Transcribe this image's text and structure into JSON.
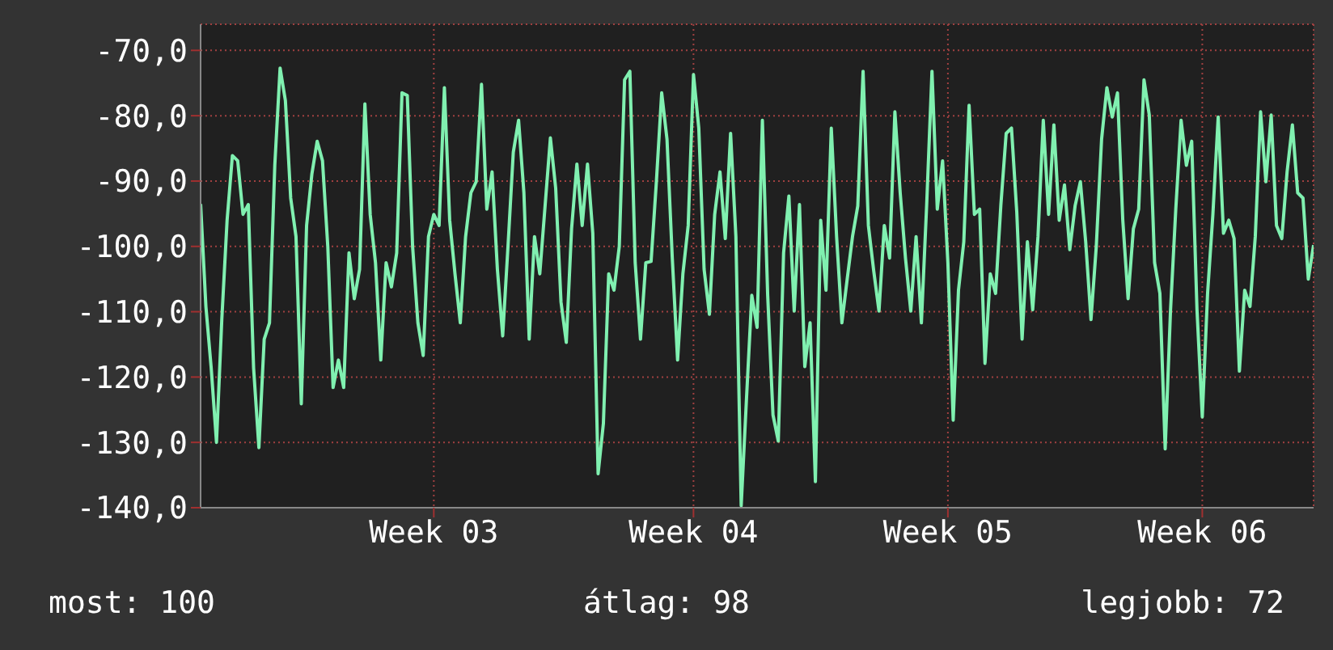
{
  "chart_data": {
    "type": "line",
    "ylim": [
      -140,
      -66
    ],
    "categories": [
      null,
      null,
      null,
      null,
      null,
      null,
      null,
      null,
      null,
      null,
      null,
      null,
      null,
      null,
      null,
      null,
      null,
      null,
      null,
      null,
      null,
      null,
      null,
      null,
      null,
      null,
      null,
      null,
      null,
      null,
      null,
      null,
      null,
      null,
      null,
      null,
      null,
      null,
      null,
      null,
      null,
      null,
      null,
      null,
      "Week 03",
      null,
      null,
      null,
      null,
      null,
      null,
      null,
      null,
      null,
      null,
      null,
      null,
      null,
      null,
      null,
      null,
      null,
      null,
      null,
      null,
      null,
      null,
      null,
      null,
      null,
      null,
      null,
      null,
      null,
      null,
      null,
      null,
      null,
      null,
      null,
      null,
      null,
      null,
      null,
      null,
      null,
      null,
      null,
      null,
      null,
      null,
      null,
      null,
      "Week 04",
      null,
      null,
      null,
      null,
      null,
      null,
      null,
      null,
      null,
      null,
      null,
      null,
      null,
      null,
      null,
      null,
      null,
      null,
      null,
      null,
      null,
      null,
      null,
      null,
      null,
      null,
      null,
      null,
      null,
      null,
      null,
      null,
      null,
      null,
      null,
      null,
      null,
      null,
      null,
      null,
      null,
      null,
      null,
      null,
      null,
      null,
      null,
      "Week 05",
      null,
      null,
      null,
      null,
      null,
      null,
      null,
      null,
      null,
      null,
      null,
      null,
      null,
      null,
      null,
      null,
      null,
      null,
      null,
      null,
      null,
      null,
      null,
      null,
      null,
      null,
      null,
      null,
      null,
      null,
      null,
      null,
      null,
      null,
      null,
      null,
      null,
      null,
      null,
      null,
      null,
      null,
      null,
      null,
      null,
      null,
      null,
      "Week 06",
      null,
      null,
      null,
      null,
      null,
      null,
      null,
      null,
      null,
      null,
      null,
      null,
      null,
      null,
      null,
      null,
      null,
      null,
      null,
      null,
      null
    ],
    "yticks": [
      {
        "value": -140,
        "label": "-140,0"
      },
      {
        "value": -130,
        "label": "-130,0"
      },
      {
        "value": -120,
        "label": "-120,0"
      },
      {
        "value": -110,
        "label": "-110,0"
      },
      {
        "value": -100,
        "label": "-100,0"
      },
      {
        "value": -90,
        "label": "-90,0"
      },
      {
        "value": -80,
        "label": "-80,0"
      },
      {
        "value": -70,
        "label": "-70,0"
      }
    ],
    "grid": true,
    "marker": "none",
    "line_style": "solid",
    "annotations": [
      "most: 100",
      "átlag: 98",
      "legjobb: 72"
    ],
    "series": [
      {
        "color": "#80f0b0",
        "values": [
          -93.5,
          -109.2,
          -118.6,
          -130,
          -111.2,
          -96,
          -86.1,
          -86.9,
          -95.1,
          -93.6,
          -118.6,
          -130.8,
          -114.2,
          -111.7,
          -87.6,
          -72.7,
          -77.7,
          -92.6,
          -98.5,
          -124.1,
          -96.8,
          -88.9,
          -83.9,
          -86.9,
          -100,
          -121.6,
          -117.4,
          -121.6,
          -101,
          -108,
          -103.5,
          -78.2,
          -95.1,
          -102.5,
          -117.4,
          -102.5,
          -106.2,
          -101,
          -76.5,
          -76.9,
          -100,
          -111.7,
          -116.7,
          -98.5,
          -95.1,
          -96.8,
          -75.7,
          -96,
          -104.2,
          -111.7,
          -98.5,
          -91.8,
          -90.1,
          -75.2,
          -94.3,
          -88.6,
          -103.5,
          -113.7,
          -100,
          -85.6,
          -80.7,
          -91.8,
          -114.2,
          -98.5,
          -104.2,
          -93.8,
          -83.4,
          -91.1,
          -108.5,
          -114.7,
          -97.3,
          -87.4,
          -96.8,
          -87.4,
          -98,
          -134.8,
          -127.1,
          -104.2,
          -106.7,
          -100,
          -74.5,
          -73.2,
          -102.5,
          -114.2,
          -102.5,
          -102.3,
          -90.1,
          -76.5,
          -83.6,
          -101.8,
          -117.4,
          -104.2,
          -96.8,
          -73.7,
          -81.9,
          -103.5,
          -110.4,
          -95.1,
          -88.6,
          -98.8,
          -82.7,
          -98.5,
          -139.7,
          -123.3,
          -107.5,
          -112.4,
          -80.7,
          -107.5,
          -125.8,
          -129.8,
          -101,
          -92.3,
          -109.9,
          -93.6,
          -118.4,
          -111.7,
          -136,
          -96,
          -106.7,
          -81.9,
          -98.5,
          -111.7,
          -105,
          -98.5,
          -93.8,
          -73.2,
          -96.8,
          -103.7,
          -109.9,
          -96.8,
          -101.8,
          -79.4,
          -91.8,
          -101.8,
          -109.9,
          -98.5,
          -111.7,
          -93.6,
          -73.2,
          -94.3,
          -86.9,
          -102.5,
          -126.6,
          -106.7,
          -99.3,
          -78.4,
          -95.1,
          -94.3,
          -117.9,
          -104.2,
          -107.2,
          -93.6,
          -82.7,
          -81.9,
          -94.8,
          -114.2,
          -99.3,
          -109.7,
          -98.5,
          -80.7,
          -95.1,
          -81.4,
          -96,
          -90.6,
          -100.5,
          -93.8,
          -90.1,
          -99.3,
          -111.2,
          -100,
          -83.6,
          -75.7,
          -80.2,
          -76.5,
          -96,
          -108,
          -97.3,
          -94.3,
          -74.5,
          -79.9,
          -102.5,
          -107.2,
          -131,
          -109.9,
          -94.3,
          -80.7,
          -87.6,
          -83.9,
          -109.7,
          -126.1,
          -107.2,
          -95.1,
          -80.2,
          -98,
          -96,
          -98.8,
          -119.1,
          -106.7,
          -109.2,
          -98.5,
          -79.4,
          -90.1,
          -79.9,
          -96.8,
          -98.8,
          -88.6,
          -81.4,
          -91.8,
          -92.6,
          -105,
          -99.8
        ]
      }
    ]
  }
}
